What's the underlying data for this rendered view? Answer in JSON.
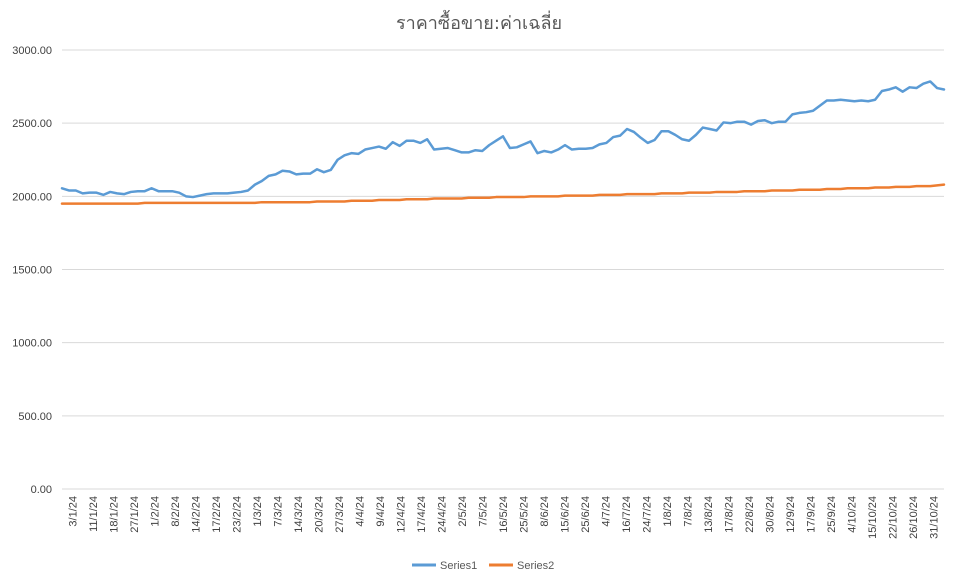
{
  "chart_data": {
    "type": "line",
    "title": "ราคาซื้อขาย:ค่าเฉลี่ย",
    "xlabel": "",
    "ylabel": "",
    "ylim": [
      0,
      3000
    ],
    "y_ticks": [
      "0.00",
      "500.00",
      "1000.00",
      "1500.00",
      "2000.00",
      "2500.00",
      "3000.00"
    ],
    "x_tick_labels": [
      "3/1/24",
      "11/1/24",
      "18/1/24",
      "27/1/24",
      "1/2/24",
      "8/2/24",
      "14/2/24",
      "17/2/24",
      "23/2/24",
      "1/3/24",
      "7/3/24",
      "14/3/24",
      "20/3/24",
      "27/3/24",
      "4/4/24",
      "9/4/24",
      "12/4/24",
      "17/4/24",
      "24/4/24",
      "2/5/24",
      "7/5/24",
      "16/5/24",
      "25/5/24",
      "8/6/24",
      "15/6/24",
      "25/6/24",
      "4/7/24",
      "16/7/24",
      "24/7/24",
      "1/8/24",
      "7/8/24",
      "13/8/24",
      "17/8/24",
      "22/8/24",
      "30/8/24",
      "12/9/24",
      "17/9/24",
      "25/9/24",
      "4/10/24",
      "15/10/24",
      "22/10/24",
      "26/10/24",
      "31/10/24"
    ],
    "grid": true,
    "legend_position": "bottom",
    "series": [
      {
        "name": "Series1",
        "color": "#5b9bd5",
        "values": [
          2055,
          2040,
          2040,
          2020,
          2025,
          2025,
          2010,
          2030,
          2020,
          2015,
          2030,
          2035,
          2035,
          2055,
          2035,
          2035,
          2035,
          2025,
          2000,
          1995,
          2005,
          2015,
          2020,
          2020,
          2020,
          2025,
          2030,
          2040,
          2080,
          2105,
          2140,
          2150,
          2175,
          2170,
          2150,
          2155,
          2155,
          2185,
          2165,
          2180,
          2250,
          2280,
          2295,
          2290,
          2320,
          2330,
          2340,
          2325,
          2370,
          2345,
          2380,
          2380,
          2365,
          2390,
          2320,
          2325,
          2330,
          2315,
          2300,
          2300,
          2315,
          2310,
          2350,
          2380,
          2410,
          2330,
          2335,
          2355,
          2375,
          2295,
          2310,
          2300,
          2320,
          2350,
          2320,
          2325,
          2325,
          2330,
          2355,
          2365,
          2405,
          2415,
          2460,
          2440,
          2400,
          2365,
          2385,
          2445,
          2445,
          2420,
          2390,
          2380,
          2420,
          2470,
          2460,
          2450,
          2505,
          2500,
          2510,
          2510,
          2490,
          2515,
          2520,
          2500,
          2510,
          2510,
          2560,
          2570,
          2575,
          2585,
          2620,
          2655,
          2655,
          2660,
          2655,
          2650,
          2655,
          2650,
          2660,
          2720,
          2730,
          2745,
          2715,
          2745,
          2740,
          2770,
          2785,
          2740,
          2730
        ]
      },
      {
        "name": "Series2",
        "color": "#ed7d31",
        "values": [
          1950,
          1950,
          1950,
          1950,
          1950,
          1950,
          1950,
          1950,
          1950,
          1950,
          1950,
          1950,
          1955,
          1955,
          1955,
          1955,
          1955,
          1955,
          1955,
          1955,
          1955,
          1955,
          1955,
          1955,
          1955,
          1955,
          1955,
          1955,
          1955,
          1960,
          1960,
          1960,
          1960,
          1960,
          1960,
          1960,
          1960,
          1965,
          1965,
          1965,
          1965,
          1965,
          1970,
          1970,
          1970,
          1970,
          1975,
          1975,
          1975,
          1975,
          1980,
          1980,
          1980,
          1980,
          1985,
          1985,
          1985,
          1985,
          1985,
          1990,
          1990,
          1990,
          1990,
          1995,
          1995,
          1995,
          1995,
          1995,
          2000,
          2000,
          2000,
          2000,
          2000,
          2005,
          2005,
          2005,
          2005,
          2005,
          2010,
          2010,
          2010,
          2010,
          2015,
          2015,
          2015,
          2015,
          2015,
          2020,
          2020,
          2020,
          2020,
          2025,
          2025,
          2025,
          2025,
          2030,
          2030,
          2030,
          2030,
          2035,
          2035,
          2035,
          2035,
          2040,
          2040,
          2040,
          2040,
          2045,
          2045,
          2045,
          2045,
          2050,
          2050,
          2050,
          2055,
          2055,
          2055,
          2055,
          2060,
          2060,
          2060,
          2065,
          2065,
          2065,
          2070,
          2070,
          2070,
          2075,
          2080
        ]
      }
    ]
  }
}
